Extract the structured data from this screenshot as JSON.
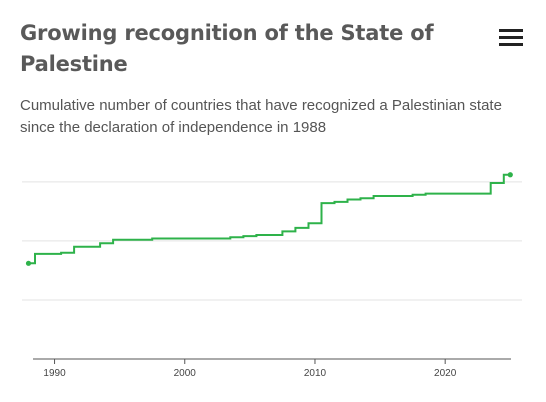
{
  "header": {
    "title": "Growing recognition of the State of Palestine",
    "menu_icon": "hamburger-menu-icon"
  },
  "subtitle": "Cumulative number of countries that have recognized a Palestinian state since the declaration of independence in 1988",
  "colors": {
    "line": "#2eb24a",
    "grid": "#e3e3e3",
    "axis": "#555555",
    "title": "#595959",
    "text": "#555555"
  },
  "chart_data": {
    "type": "line",
    "step": "after",
    "title": "Growing recognition of the State of Palestine",
    "subtitle": "Cumulative number of countries that have recognized a Palestinian state since the declaration of independence in 1988",
    "xlabel": "",
    "ylabel": "",
    "xlim": [
      1987.5,
      2025.9
    ],
    "ylim": [
      0,
      160
    ],
    "x_ticks": [
      1990,
      2000,
      2010,
      2020
    ],
    "y_gridlines": [
      0,
      50,
      100,
      150
    ],
    "y_tick_labels_shown": false,
    "grid": true,
    "end_markers": true,
    "series": [
      {
        "values": [
          {
            "x": 1988.0,
            "y": 81
          },
          {
            "x": 1988.5,
            "y": 89
          },
          {
            "x": 1990.5,
            "y": 90
          },
          {
            "x": 1991.5,
            "y": 95
          },
          {
            "x": 1993.5,
            "y": 98
          },
          {
            "x": 1994.5,
            "y": 101
          },
          {
            "x": 1997.5,
            "y": 102
          },
          {
            "x": 2003.5,
            "y": 103
          },
          {
            "x": 2004.5,
            "y": 104
          },
          {
            "x": 2005.5,
            "y": 105
          },
          {
            "x": 2007.5,
            "y": 108
          },
          {
            "x": 2008.5,
            "y": 111
          },
          {
            "x": 2009.5,
            "y": 115
          },
          {
            "x": 2010.5,
            "y": 132
          },
          {
            "x": 2011.5,
            "y": 133
          },
          {
            "x": 2012.5,
            "y": 135
          },
          {
            "x": 2013.5,
            "y": 136
          },
          {
            "x": 2014.5,
            "y": 138
          },
          {
            "x": 2017.5,
            "y": 139
          },
          {
            "x": 2018.5,
            "y": 140
          },
          {
            "x": 2023.5,
            "y": 149
          },
          {
            "x": 2024.5,
            "y": 156
          },
          {
            "x": 2025.0,
            "y": 156
          }
        ]
      }
    ]
  }
}
